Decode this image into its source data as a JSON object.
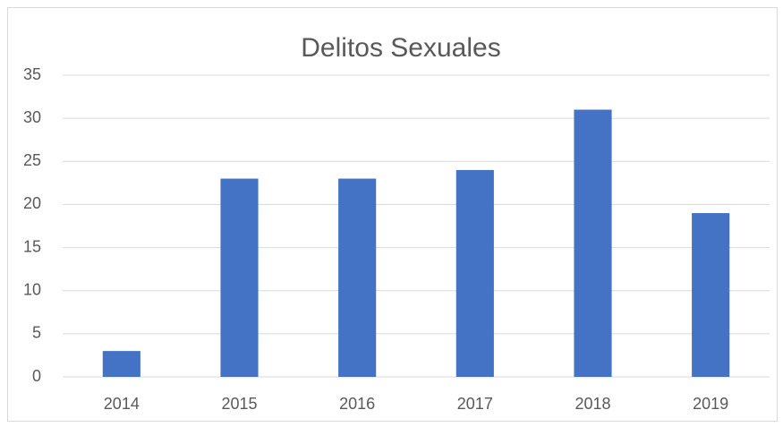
{
  "chart_data": {
    "type": "bar",
    "title": "Delitos Sexuales",
    "categories": [
      "2014",
      "2015",
      "2016",
      "2017",
      "2018",
      "2019"
    ],
    "values": [
      3,
      23,
      23,
      24,
      31,
      19
    ],
    "color": "#4472c4",
    "ylim": [
      0,
      35
    ],
    "yticks": [
      0,
      5,
      10,
      15,
      20,
      25,
      30,
      35
    ],
    "grid": true
  }
}
